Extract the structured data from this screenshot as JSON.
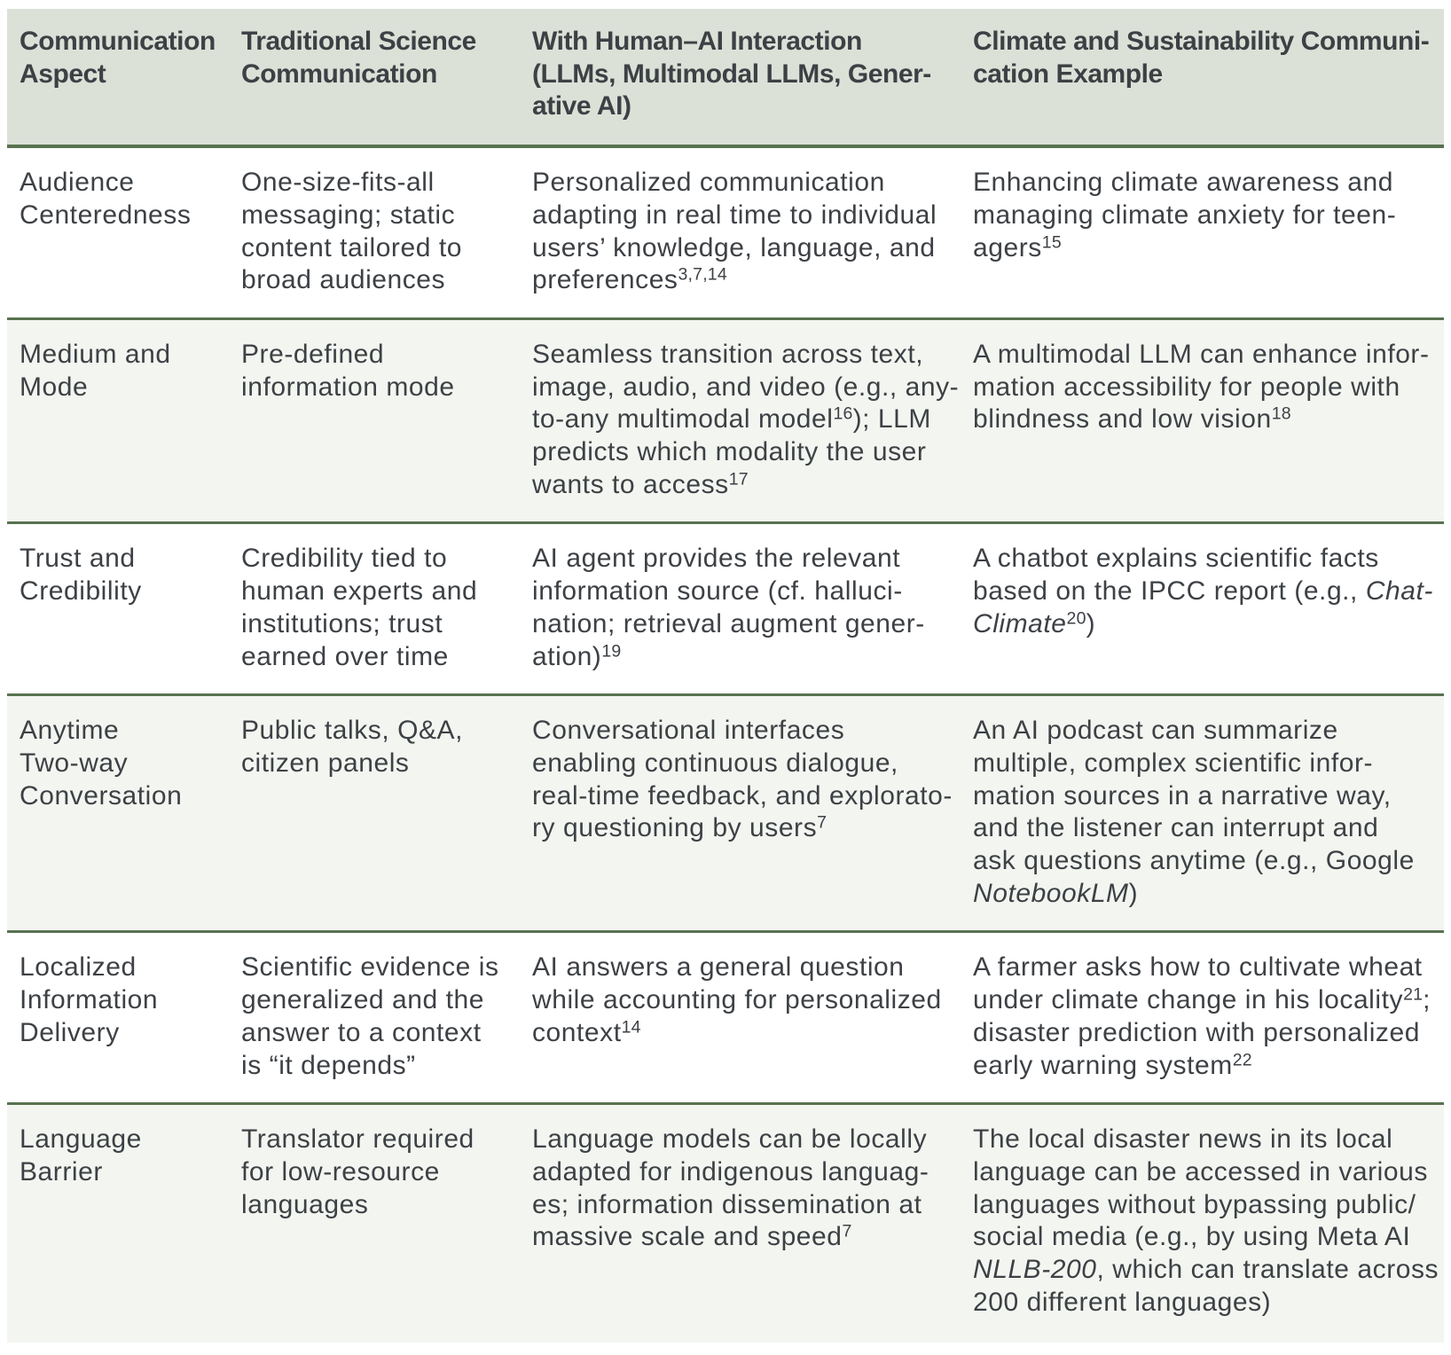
{
  "colors": {
    "rule": "#587251",
    "header_background": "#dce1d8",
    "shaded_row_background": "#f3f5f0",
    "text": "#3d4145",
    "page_background": "#ffffff"
  },
  "table": {
    "columns": [
      "Communication\nAspect",
      "Traditional Science\nCommunication",
      "With Human–AI Interaction\n(LLMs, Multimodal LLMs, Gener-\native AI)",
      "Climate and Sustainability Communi-\ncation Example"
    ],
    "rows": [
      {
        "aspect": [
          {
            "t": "Audience\nCenteredness"
          }
        ],
        "traditional": [
          {
            "t": "One-size-fits-all\nmessaging; static\ncontent tailored to\nbroad audiences"
          }
        ],
        "with_ai": [
          {
            "t": "Personalized communication\nadapting in real time to individual\nusers’ knowledge, language, and\npreferences"
          },
          {
            "sup": "3,7,14"
          }
        ],
        "example": [
          {
            "t": "Enhancing climate awareness and\nmanaging climate anxiety for teen-\nagers"
          },
          {
            "sup": "15"
          }
        ]
      },
      {
        "aspect": [
          {
            "t": "Medium and\nMode"
          }
        ],
        "traditional": [
          {
            "t": "Pre-defined\ninformation mode"
          }
        ],
        "with_ai": [
          {
            "t": "Seamless transition across text,\nimage, audio, and video (e.g., any-\nto-any multimodal model"
          },
          {
            "sup": "16"
          },
          {
            "t": "); LLM\npredicts which modality the user\nwants to access"
          },
          {
            "sup": "17"
          }
        ],
        "example": [
          {
            "t": "A multimodal LLM can enhance infor-\nmation accessibility for people with\nblindness and low vision"
          },
          {
            "sup": "18"
          }
        ]
      },
      {
        "aspect": [
          {
            "t": "Trust and\nCredibility"
          }
        ],
        "traditional": [
          {
            "t": "Credibility tied to\nhuman experts and\ninstitutions; trust\nearned over time"
          }
        ],
        "with_ai": [
          {
            "t": "AI agent provides the relevant\ninformation source (cf. halluci-\nnation; retrieval augment gener-\nation)"
          },
          {
            "sup": "19"
          }
        ],
        "example": [
          {
            "t": "A chatbot explains scientific facts\nbased on the IPCC report (e.g., "
          },
          {
            "i": "Chat-\nClimate"
          },
          {
            "sup": "20"
          },
          {
            "t": ")"
          }
        ]
      },
      {
        "aspect": [
          {
            "t": "Anytime\nTwo-way\nConversation"
          }
        ],
        "traditional": [
          {
            "t": "Public talks, Q&A,\ncitizen panels"
          }
        ],
        "with_ai": [
          {
            "t": "Conversational interfaces\nenabling continuous dialogue,\nreal-time feedback, and explorato-\nry questioning by users"
          },
          {
            "sup": "7"
          }
        ],
        "example": [
          {
            "t": "An AI podcast can summarize\nmultiple, complex scientific infor-\nmation sources in a narrative way,\nand the listener can interrupt and\nask questions anytime (e.g., Google\n"
          },
          {
            "i": "NotebookLM"
          },
          {
            "t": ")"
          }
        ]
      },
      {
        "aspect": [
          {
            "t": "Localized\nInformation\nDelivery"
          }
        ],
        "traditional": [
          {
            "t": "Scientific evidence is\ngeneralized and the\nanswer to a context\nis “it depends”"
          }
        ],
        "with_ai": [
          {
            "t": "AI answers a general question\nwhile accounting for personalized\ncontext"
          },
          {
            "sup": "14"
          }
        ],
        "example": [
          {
            "t": "A farmer asks how to cultivate wheat\nunder climate change in his locality"
          },
          {
            "sup": "21"
          },
          {
            "t": ";\ndisaster prediction with personalized\nearly warning system"
          },
          {
            "sup": "22"
          }
        ]
      },
      {
        "aspect": [
          {
            "t": "Language\nBarrier"
          }
        ],
        "traditional": [
          {
            "t": "Translator required\nfor low-resource\nlanguages"
          }
        ],
        "with_ai": [
          {
            "t": "Language models can be locally\nadapted for indigenous languag-\nes; information dissemination at\nmassive scale and speed"
          },
          {
            "sup": "7"
          }
        ],
        "example": [
          {
            "t": "The local disaster news in its local\nlanguage can be accessed in various\nlanguages without bypassing public/\nsocial media (e.g., by using Meta AI\n"
          },
          {
            "i": "NLLB-200"
          },
          {
            "t": ", which can translate across\n200 different languages)"
          }
        ]
      }
    ]
  }
}
